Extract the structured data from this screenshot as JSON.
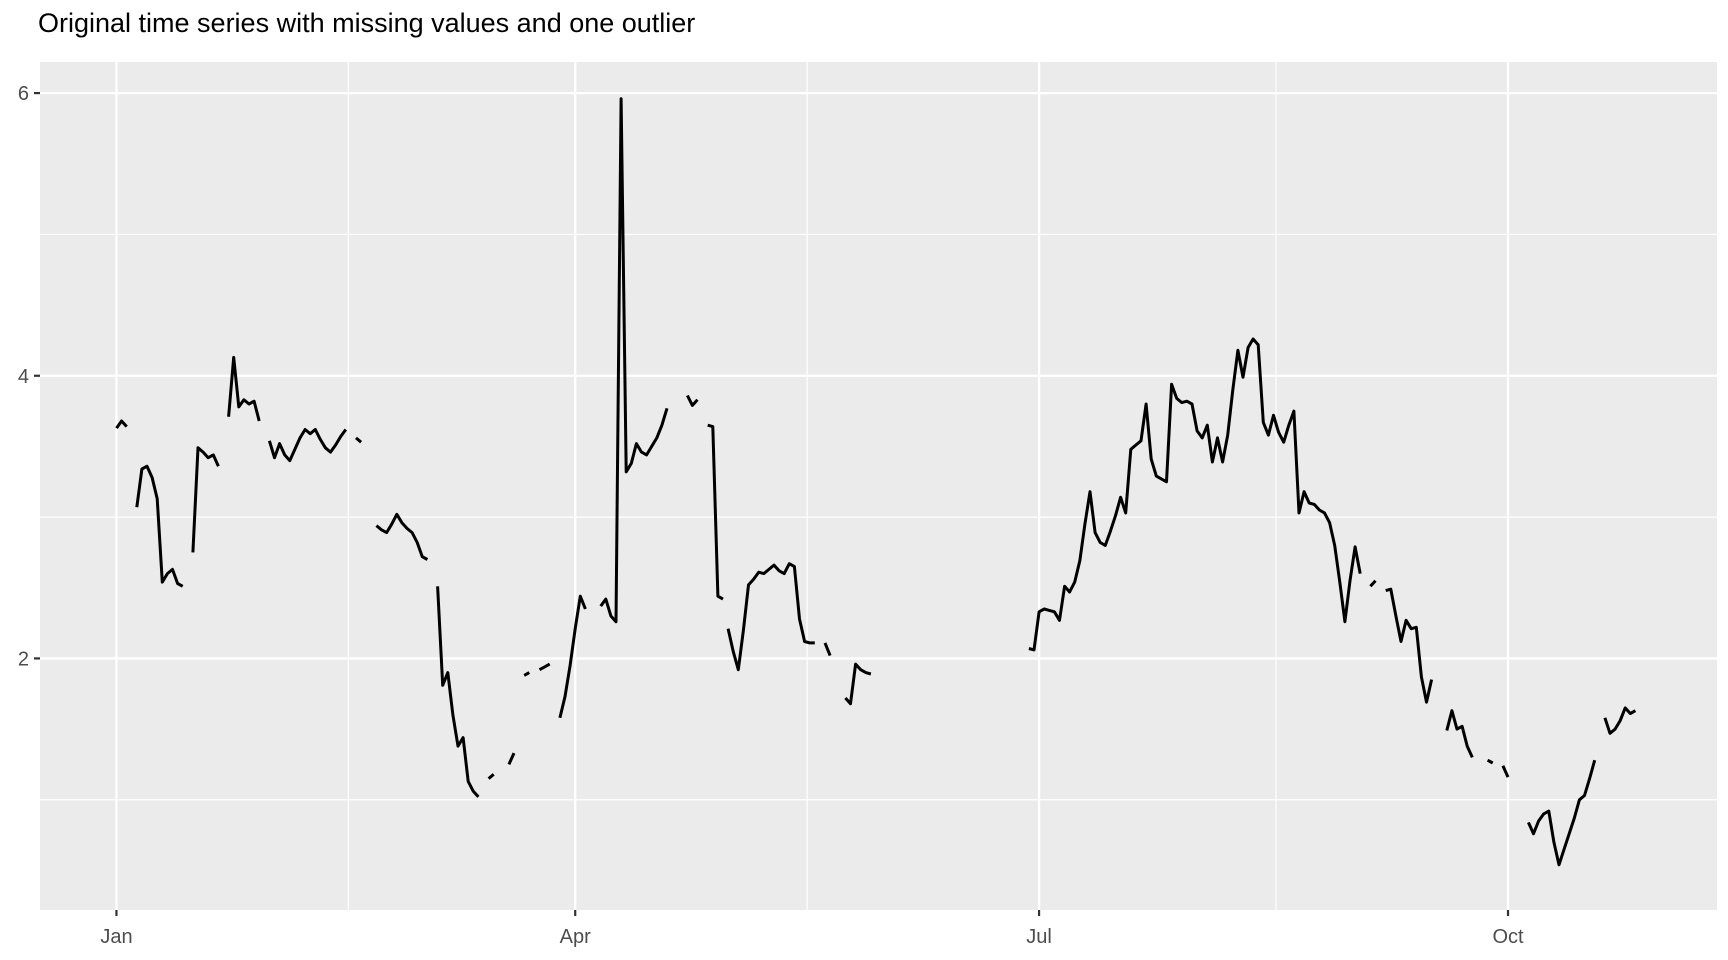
{
  "title": "Original time series with missing values and one outlier",
  "colors": {
    "page_bg": "#FFFFFF",
    "panel_bg": "#EBEBEB",
    "grid": "#FFFFFF",
    "line": "#000000",
    "axis_text": "#4D4D4D",
    "tick_mark": "#333333"
  },
  "chart_data": {
    "type": "line",
    "title": "Original time series with missing values and one outlier",
    "xlabel": "",
    "ylabel": "",
    "legend": "none",
    "grid": true,
    "x_unit": "day_of_year",
    "x_axis": {
      "tick_labels": [
        "Jan",
        "Apr",
        "Jul",
        "Oct"
      ],
      "tick_days": [
        1,
        91,
        182,
        274
      ],
      "minor_days": [
        46.5,
        136.5,
        228.5
      ]
    },
    "y_axis": {
      "tick_labels": [
        "2",
        "4",
        "6"
      ],
      "tick_values": [
        2,
        4,
        6
      ],
      "minor_values": [
        1,
        3,
        5
      ]
    },
    "x_range_days": [
      -14,
      315
    ],
    "y_range": [
      0.22,
      6.22
    ],
    "outlier": {
      "day": 100,
      "value": 5.96
    },
    "segments": [
      [
        [
          1,
          3.63
        ],
        [
          2,
          3.68
        ],
        [
          3,
          3.64
        ]
      ],
      [
        [
          5,
          3.07
        ],
        [
          6,
          3.34
        ],
        [
          7,
          3.36
        ],
        [
          8,
          3.28
        ],
        [
          9,
          3.13
        ],
        [
          10,
          2.54
        ],
        [
          11,
          2.6
        ],
        [
          12,
          2.63
        ],
        [
          13,
          2.53
        ],
        [
          14,
          2.51
        ]
      ],
      [
        [
          16,
          2.75
        ],
        [
          17,
          3.49
        ],
        [
          18,
          3.46
        ],
        [
          19,
          3.42
        ],
        [
          20,
          3.44
        ],
        [
          21,
          3.36
        ]
      ],
      [
        [
          23,
          3.71
        ],
        [
          24,
          4.13
        ],
        [
          25,
          3.78
        ],
        [
          26,
          3.83
        ],
        [
          27,
          3.8
        ],
        [
          28,
          3.82
        ],
        [
          29,
          3.68
        ]
      ],
      [
        [
          31,
          3.54
        ],
        [
          32,
          3.42
        ],
        [
          33,
          3.52
        ],
        [
          34,
          3.44
        ],
        [
          35,
          3.4
        ],
        [
          36,
          3.48
        ],
        [
          37,
          3.56
        ],
        [
          38,
          3.62
        ],
        [
          39,
          3.59
        ],
        [
          40,
          3.62
        ],
        [
          41,
          3.55
        ],
        [
          42,
          3.49
        ],
        [
          43,
          3.46
        ],
        [
          44,
          3.51
        ],
        [
          45,
          3.57
        ],
        [
          46,
          3.62
        ]
      ],
      [
        [
          48,
          3.56
        ],
        [
          49,
          3.53
        ]
      ],
      [
        [
          52,
          2.94
        ],
        [
          53,
          2.91
        ],
        [
          54,
          2.89
        ],
        [
          55,
          2.95
        ],
        [
          56,
          3.02
        ],
        [
          57,
          2.96
        ],
        [
          58,
          2.92
        ],
        [
          59,
          2.89
        ],
        [
          60,
          2.82
        ],
        [
          61,
          2.72
        ],
        [
          62,
          2.7
        ]
      ],
      [
        [
          64,
          2.51
        ],
        [
          65,
          1.81
        ],
        [
          66,
          1.9
        ],
        [
          67,
          1.6
        ],
        [
          68,
          1.38
        ],
        [
          69,
          1.44
        ],
        [
          70,
          1.13
        ],
        [
          71,
          1.06
        ],
        [
          72,
          1.02
        ]
      ],
      [
        [
          74,
          1.15
        ],
        [
          75,
          1.18
        ]
      ],
      [
        [
          78,
          1.25
        ],
        [
          79,
          1.33
        ]
      ],
      [
        [
          81,
          1.88
        ],
        [
          82,
          1.9
        ]
      ],
      [
        [
          84,
          1.92
        ],
        [
          85,
          1.94
        ],
        [
          86,
          1.96
        ]
      ],
      [
        [
          88,
          1.58
        ],
        [
          89,
          1.73
        ],
        [
          90,
          1.95
        ],
        [
          91,
          2.21
        ],
        [
          92,
          2.44
        ],
        [
          93,
          2.35
        ]
      ],
      [
        [
          96,
          2.37
        ],
        [
          97,
          2.42
        ],
        [
          98,
          2.3
        ],
        [
          99,
          2.26
        ],
        [
          100,
          5.96
        ],
        [
          101,
          3.32
        ],
        [
          102,
          3.38
        ],
        [
          103,
          3.52
        ],
        [
          104,
          3.46
        ],
        [
          105,
          3.44
        ],
        [
          106,
          3.5
        ],
        [
          107,
          3.56
        ],
        [
          108,
          3.65
        ],
        [
          109,
          3.77
        ]
      ],
      [
        [
          113,
          3.86
        ],
        [
          114,
          3.79
        ],
        [
          115,
          3.83
        ]
      ],
      [
        [
          117,
          3.65
        ],
        [
          118,
          3.64
        ],
        [
          119,
          2.44
        ],
        [
          120,
          2.42
        ]
      ],
      [
        [
          121,
          2.21
        ],
        [
          122,
          2.05
        ],
        [
          123,
          1.92
        ],
        [
          124,
          2.2
        ],
        [
          125,
          2.52
        ],
        [
          126,
          2.56
        ],
        [
          127,
          2.61
        ],
        [
          128,
          2.6
        ],
        [
          129,
          2.63
        ],
        [
          130,
          2.66
        ],
        [
          131,
          2.62
        ],
        [
          132,
          2.6
        ],
        [
          133,
          2.67
        ],
        [
          134,
          2.65
        ],
        [
          135,
          2.28
        ],
        [
          136,
          2.12
        ],
        [
          137,
          2.11
        ],
        [
          138,
          2.11
        ]
      ],
      [
        [
          140,
          2.11
        ],
        [
          141,
          2.02
        ]
      ],
      [
        [
          144,
          1.72
        ],
        [
          145,
          1.68
        ],
        [
          146,
          1.96
        ],
        [
          147,
          1.92
        ],
        [
          148,
          1.9
        ],
        [
          149,
          1.89
        ]
      ],
      [
        [
          180,
          2.07
        ],
        [
          181,
          2.06
        ],
        [
          182,
          2.33
        ],
        [
          183,
          2.35
        ],
        [
          184,
          2.34
        ],
        [
          185,
          2.33
        ],
        [
          186,
          2.27
        ],
        [
          187,
          2.51
        ],
        [
          188,
          2.47
        ],
        [
          189,
          2.54
        ],
        [
          190,
          2.69
        ],
        [
          191,
          2.95
        ],
        [
          192,
          3.18
        ],
        [
          193,
          2.89
        ],
        [
          194,
          2.82
        ],
        [
          195,
          2.8
        ],
        [
          196,
          2.9
        ],
        [
          197,
          3.01
        ],
        [
          198,
          3.14
        ],
        [
          199,
          3.03
        ],
        [
          200,
          3.48
        ],
        [
          201,
          3.51
        ],
        [
          202,
          3.54
        ],
        [
          203,
          3.8
        ],
        [
          204,
          3.41
        ],
        [
          205,
          3.29
        ],
        [
          206,
          3.27
        ],
        [
          207,
          3.25
        ],
        [
          208,
          3.94
        ],
        [
          209,
          3.84
        ],
        [
          210,
          3.81
        ],
        [
          211,
          3.82
        ],
        [
          212,
          3.8
        ],
        [
          213,
          3.61
        ],
        [
          214,
          3.56
        ],
        [
          215,
          3.65
        ],
        [
          216,
          3.39
        ],
        [
          217,
          3.56
        ],
        [
          218,
          3.39
        ],
        [
          219,
          3.58
        ],
        [
          220,
          3.9
        ],
        [
          221,
          4.18
        ],
        [
          222,
          3.99
        ],
        [
          223,
          4.2
        ],
        [
          224,
          4.26
        ],
        [
          225,
          4.22
        ],
        [
          226,
          3.67
        ],
        [
          227,
          3.58
        ],
        [
          228,
          3.72
        ],
        [
          229,
          3.6
        ],
        [
          230,
          3.53
        ],
        [
          231,
          3.65
        ],
        [
          232,
          3.75
        ],
        [
          233,
          3.03
        ],
        [
          234,
          3.18
        ],
        [
          235,
          3.1
        ],
        [
          236,
          3.09
        ],
        [
          237,
          3.05
        ],
        [
          238,
          3.03
        ],
        [
          239,
          2.96
        ],
        [
          240,
          2.8
        ],
        [
          241,
          2.54
        ],
        [
          242,
          2.26
        ],
        [
          243,
          2.55
        ],
        [
          244,
          2.79
        ],
        [
          245,
          2.6
        ]
      ],
      [
        [
          247,
          2.51
        ],
        [
          248,
          2.55
        ]
      ],
      [
        [
          250,
          2.48
        ],
        [
          251,
          2.49
        ],
        [
          252,
          2.3
        ],
        [
          253,
          2.12
        ],
        [
          254,
          2.27
        ],
        [
          255,
          2.21
        ],
        [
          256,
          2.22
        ],
        [
          257,
          1.87
        ],
        [
          258,
          1.69
        ],
        [
          259,
          1.85
        ]
      ],
      [
        [
          262,
          1.49
        ],
        [
          263,
          1.63
        ],
        [
          264,
          1.5
        ],
        [
          265,
          1.52
        ],
        [
          266,
          1.38
        ],
        [
          267,
          1.3
        ]
      ],
      [
        [
          270,
          1.28
        ],
        [
          271,
          1.26
        ]
      ],
      [
        [
          273,
          1.24
        ],
        [
          274,
          1.16
        ]
      ],
      [
        [
          278,
          0.84
        ],
        [
          279,
          0.76
        ],
        [
          280,
          0.85
        ],
        [
          281,
          0.9
        ],
        [
          282,
          0.92
        ],
        [
          283,
          0.7
        ],
        [
          284,
          0.54
        ],
        [
          285,
          0.65
        ],
        [
          286,
          0.76
        ],
        [
          287,
          0.87
        ],
        [
          288,
          1.0
        ],
        [
          289,
          1.03
        ],
        [
          290,
          1.15
        ],
        [
          291,
          1.28
        ]
      ],
      [
        [
          293,
          1.58
        ],
        [
          294,
          1.47
        ],
        [
          295,
          1.5
        ],
        [
          296,
          1.56
        ],
        [
          297,
          1.65
        ],
        [
          298,
          1.61
        ],
        [
          299,
          1.63
        ]
      ]
    ]
  }
}
